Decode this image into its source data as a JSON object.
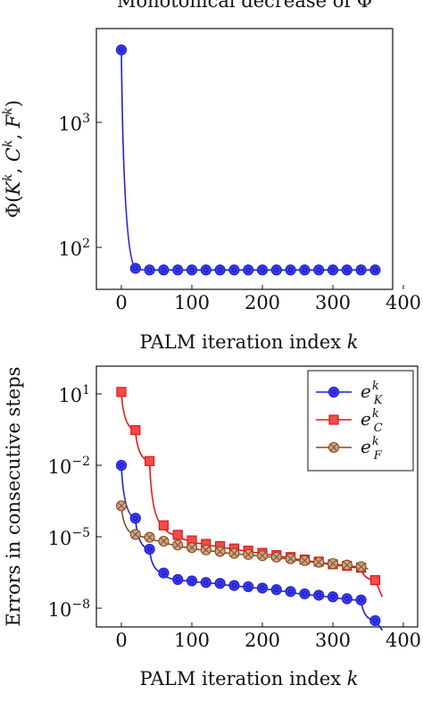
{
  "chart_data": [
    {
      "type": "line",
      "title": "Monotonical decrease of Φ",
      "xlabel": "PALM iteration index k",
      "ylabel": "Φ(K^k, C^k, F^k)",
      "yscale": "log",
      "xlim": [
        -20,
        400
      ],
      "ylim": [
        45,
        10000
      ],
      "x_ticks": [
        "0",
        "100",
        "200",
        "300",
        "400"
      ],
      "y_ticks": [
        "10^2",
        "10^3"
      ],
      "colors": {
        "series": "#1f1fd6",
        "marker_fill": "#3b3bf0"
      },
      "series": [
        {
          "name": "",
          "marker": "circle",
          "x": [
            0,
            20,
            40,
            60,
            80,
            100,
            120,
            140,
            160,
            180,
            200,
            220,
            240,
            260,
            280,
            300,
            320,
            340,
            360
          ],
          "y": [
            3800,
            68,
            66,
            66,
            66,
            66,
            66,
            66,
            66,
            66,
            66,
            66,
            66,
            66,
            66,
            66,
            66,
            66,
            66
          ]
        }
      ]
    },
    {
      "type": "line",
      "title": "",
      "xlabel": "PALM iteration index k",
      "ylabel": "Errors in consecutive steps",
      "yscale": "log",
      "xlim": [
        -20,
        400
      ],
      "ylim": [
        1e-09,
        1000
      ],
      "x_ticks": [
        "0",
        "100",
        "200",
        "300",
        "400"
      ],
      "y_ticks": [
        "10^1",
        "10^-2",
        "10^-5",
        "10^-8"
      ],
      "legend_position": "top-right",
      "series": [
        {
          "name": "e_K^k",
          "color": "#1f1fd6",
          "marker": "circle",
          "x": [
            0,
            20,
            40,
            60,
            80,
            100,
            120,
            140,
            160,
            180,
            200,
            220,
            240,
            260,
            280,
            300,
            320,
            340,
            360
          ],
          "y": [
            0.01,
            6e-05,
            3e-06,
            3e-07,
            1.6e-07,
            1.4e-07,
            1.2e-07,
            1.1e-07,
            9e-08,
            8e-08,
            7e-08,
            6e-08,
            5e-08,
            4e-08,
            3.5e-08,
            3e-08,
            2.5e-08,
            2.2e-08,
            3e-09
          ]
        },
        {
          "name": "e_C^k",
          "color": "#e01818",
          "marker": "square",
          "x": [
            0,
            20,
            40,
            60,
            80,
            100,
            120,
            140,
            160,
            180,
            200,
            220,
            240,
            260,
            280,
            300,
            320,
            340,
            360
          ],
          "y": [
            12,
            0.3,
            0.015,
            3e-05,
            1.2e-05,
            7e-06,
            5e-06,
            4e-06,
            3.2e-06,
            2.6e-06,
            2.1e-06,
            1.7e-06,
            1.4e-06,
            1.1e-06,
            9e-07,
            7e-07,
            6e-07,
            5e-07,
            1.5e-07
          ]
        },
        {
          "name": "e_F^k",
          "color": "#8b4a1c",
          "marker": "circle-x",
          "x": [
            0,
            20,
            40,
            60,
            80,
            100,
            120,
            140,
            160,
            180,
            200,
            220,
            240,
            260,
            280,
            300,
            320,
            340
          ],
          "y": [
            0.0002,
            1.25e-05,
            9.5e-06,
            6.5e-06,
            4.5e-06,
            3.5e-06,
            2.8e-06,
            2.4e-06,
            2e-06,
            1.8e-06,
            1.6e-06,
            1.4e-06,
            1.2e-06,
            1e-06,
            8.5e-07,
            7.5e-07,
            6.5e-07,
            5.5e-07
          ]
        }
      ]
    }
  ]
}
